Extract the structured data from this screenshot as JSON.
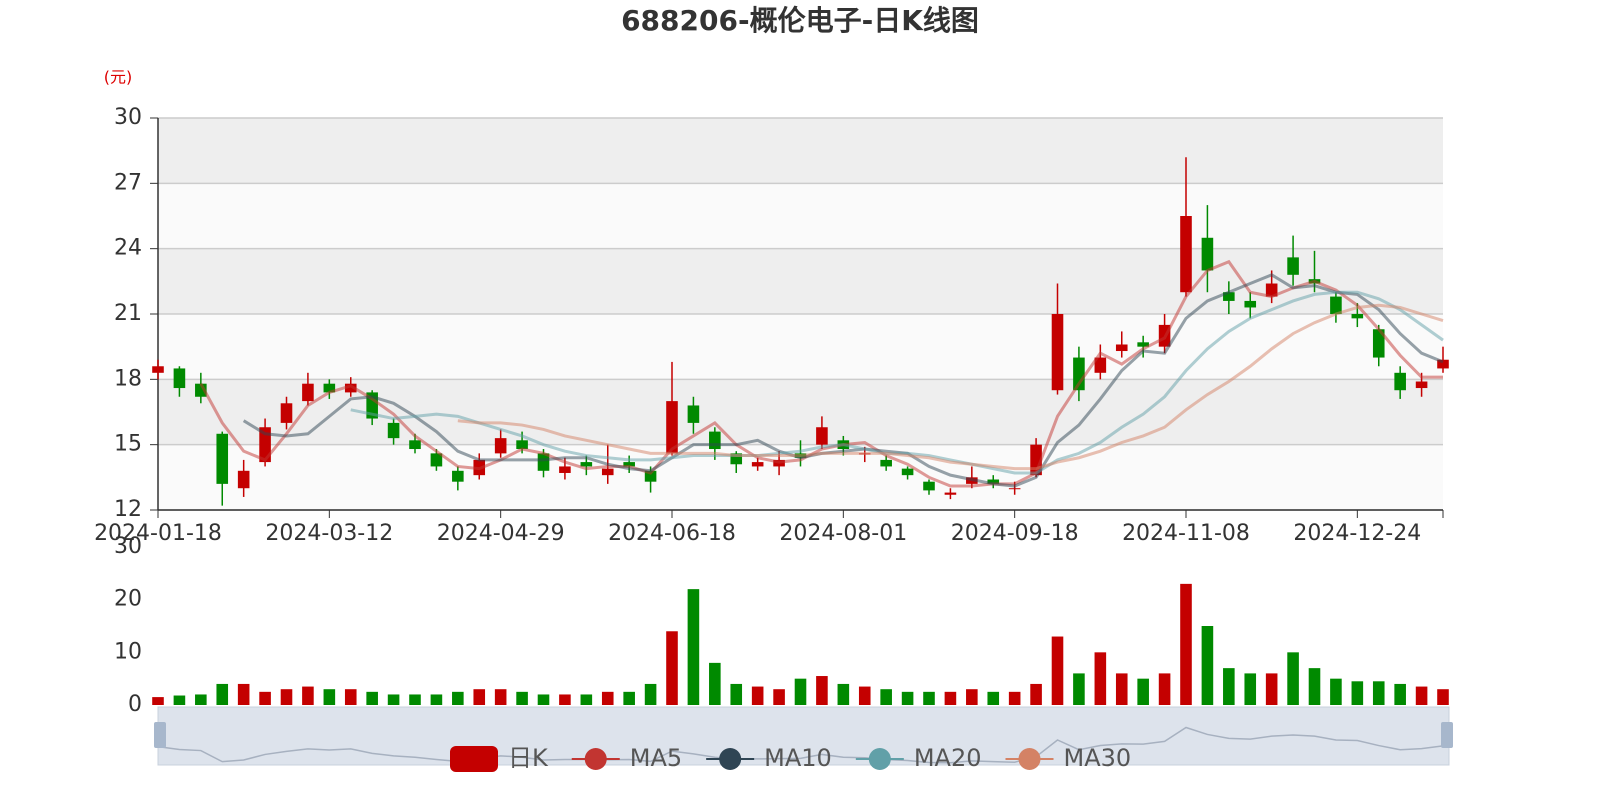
{
  "chart_data": {
    "type": "candlestick",
    "title": "688206-概伦电子-日K线图",
    "y_unit": "(元)",
    "categories": [
      "2024-01-18",
      null,
      null,
      null,
      null,
      null,
      null,
      null,
      "2024-03-12",
      null,
      null,
      null,
      null,
      null,
      null,
      null,
      "2024-04-29",
      null,
      null,
      null,
      null,
      null,
      null,
      null,
      "2024-06-18",
      null,
      null,
      null,
      null,
      null,
      null,
      null,
      "2024-08-01",
      null,
      null,
      null,
      null,
      null,
      null,
      null,
      "2024-09-18",
      null,
      null,
      null,
      null,
      null,
      null,
      null,
      "2024-11-08",
      null,
      null,
      null,
      null,
      null,
      null,
      null,
      "2024-12-24",
      null,
      null,
      null,
      null
    ],
    "ylim": [
      12,
      30
    ],
    "yticks": [
      12,
      15,
      18,
      21,
      24,
      27,
      30
    ],
    "grid": true,
    "legend": "bottom",
    "candles": {
      "name": "日K",
      "up_color": "#c40000",
      "down_color": "#008a00",
      "open": [
        18.3,
        18.5,
        17.8,
        15.5,
        13.0,
        14.2,
        16.0,
        17.0,
        17.8,
        17.4,
        17.4,
        16.0,
        15.2,
        14.6,
        13.8,
        13.6,
        14.6,
        15.2,
        14.6,
        13.7,
        14.2,
        13.6,
        14.2,
        13.8,
        14.6,
        16.8,
        15.6,
        14.6,
        14.0,
        14.0,
        14.6,
        15.0,
        15.2,
        14.6,
        14.3,
        13.9,
        13.3,
        12.7,
        13.2,
        13.4,
        13.0,
        13.6,
        17.5,
        19.0,
        18.3,
        19.3,
        19.7,
        19.5,
        22.0,
        24.5,
        22.0,
        21.6,
        21.8,
        23.6,
        22.6,
        21.8,
        21.0,
        20.3,
        18.3,
        17.6,
        18.5
      ],
      "close": [
        18.6,
        17.6,
        17.2,
        13.2,
        13.8,
        15.8,
        16.9,
        17.8,
        17.4,
        17.8,
        16.2,
        15.3,
        14.8,
        14.0,
        13.3,
        14.3,
        15.3,
        14.8,
        13.8,
        14.0,
        14.0,
        13.9,
        14.0,
        13.3,
        17.0,
        16.0,
        14.8,
        14.1,
        14.2,
        14.3,
        14.4,
        15.8,
        14.8,
        14.6,
        14.0,
        13.6,
        12.9,
        12.8,
        13.5,
        13.2,
        13.0,
        15.0,
        21.0,
        17.5,
        19.0,
        19.6,
        19.5,
        20.5,
        25.5,
        23.0,
        21.6,
        21.3,
        22.4,
        22.8,
        22.4,
        21.0,
        20.8,
        19.0,
        17.5,
        17.9,
        18.9
      ],
      "low": [
        18.0,
        17.2,
        16.9,
        12.2,
        12.6,
        14.0,
        15.7,
        16.8,
        17.1,
        17.2,
        15.9,
        15.0,
        14.6,
        13.8,
        12.9,
        13.4,
        14.4,
        14.6,
        13.5,
        13.4,
        13.6,
        13.2,
        13.7,
        12.8,
        14.5,
        15.5,
        14.3,
        13.7,
        13.8,
        13.6,
        14.0,
        14.8,
        14.5,
        14.2,
        13.8,
        13.4,
        12.7,
        12.5,
        13.0,
        13.0,
        12.7,
        13.5,
        17.3,
        17.0,
        18.0,
        19.0,
        19.0,
        19.2,
        21.8,
        22.0,
        21.0,
        20.8,
        21.5,
        22.3,
        22.0,
        20.6,
        20.4,
        18.6,
        17.1,
        17.2,
        18.3
      ],
      "high": [
        18.9,
        18.6,
        18.3,
        15.6,
        14.3,
        16.2,
        17.2,
        18.3,
        18.0,
        18.1,
        17.5,
        16.2,
        15.5,
        14.8,
        14.0,
        14.6,
        15.7,
        15.6,
        14.8,
        14.4,
        14.5,
        15.0,
        14.5,
        14.0,
        18.8,
        17.2,
        15.8,
        14.7,
        14.4,
        14.7,
        15.2,
        16.3,
        15.4,
        14.9,
        14.5,
        14.0,
        13.4,
        13.0,
        14.0,
        13.6,
        13.3,
        15.3,
        22.4,
        19.5,
        19.6,
        20.2,
        20.0,
        21.0,
        28.2,
        26.0,
        22.5,
        22.0,
        23.0,
        24.6,
        23.9,
        22.0,
        21.5,
        20.5,
        18.6,
        18.3,
        19.5
      ]
    },
    "series": [
      {
        "name": "MA5",
        "color": "#c23531",
        "values": [
          null,
          null,
          17.8,
          16.0,
          14.7,
          14.3,
          15.5,
          16.8,
          17.4,
          17.7,
          17.1,
          16.4,
          15.4,
          14.7,
          14.0,
          13.9,
          14.3,
          14.8,
          14.6,
          14.2,
          13.9,
          14.0,
          14.0,
          13.7,
          14.8,
          15.4,
          16.0,
          15.0,
          14.4,
          14.2,
          14.3,
          14.8,
          15.0,
          15.1,
          14.5,
          14.1,
          13.5,
          13.1,
          13.1,
          13.2,
          13.2,
          13.7,
          16.3,
          17.8,
          19.2,
          18.7,
          19.4,
          19.9,
          21.8,
          23.0,
          23.4,
          22.0,
          21.8,
          22.2,
          22.5,
          22.1,
          21.4,
          20.3,
          19.1,
          18.1,
          18.1
        ]
      },
      {
        "name": "MA10",
        "color": "#2f4554",
        "values": [
          null,
          null,
          null,
          null,
          16.1,
          15.5,
          15.4,
          15.5,
          16.3,
          17.1,
          17.2,
          16.9,
          16.3,
          15.6,
          14.7,
          14.3,
          14.3,
          14.3,
          14.3,
          14.4,
          14.4,
          14.1,
          13.9,
          13.8,
          14.4,
          15.0,
          15.0,
          15.0,
          15.2,
          14.7,
          14.4,
          14.6,
          14.7,
          14.8,
          14.7,
          14.6,
          14.0,
          13.6,
          13.4,
          13.2,
          13.1,
          13.5,
          15.1,
          15.9,
          17.1,
          18.4,
          19.3,
          19.2,
          20.8,
          21.6,
          22.0,
          22.4,
          22.8,
          22.2,
          22.3,
          22.0,
          21.9,
          21.2,
          20.1,
          19.2,
          18.8
        ]
      },
      {
        "name": "MA20",
        "color": "#61a0a8",
        "values": [
          null,
          null,
          null,
          null,
          null,
          null,
          null,
          null,
          null,
          16.6,
          16.4,
          16.2,
          16.3,
          16.4,
          16.3,
          16.0,
          15.7,
          15.4,
          15.0,
          14.7,
          14.5,
          14.4,
          14.3,
          14.3,
          14.4,
          14.5,
          14.5,
          14.5,
          14.5,
          14.6,
          14.7,
          14.9,
          15.0,
          14.8,
          14.6,
          14.6,
          14.5,
          14.3,
          14.1,
          13.9,
          13.7,
          13.7,
          14.3,
          14.6,
          15.1,
          15.8,
          16.4,
          17.2,
          18.4,
          19.4,
          20.2,
          20.8,
          21.2,
          21.6,
          21.9,
          22.0,
          22.0,
          21.7,
          21.2,
          20.5,
          19.8
        ]
      },
      {
        "name": "MA30",
        "color": "#d48265",
        "values": [
          null,
          null,
          null,
          null,
          null,
          null,
          null,
          null,
          null,
          null,
          null,
          null,
          null,
          null,
          16.1,
          16.0,
          16.0,
          15.9,
          15.7,
          15.4,
          15.2,
          15.0,
          14.8,
          14.6,
          14.6,
          14.6,
          14.6,
          14.5,
          14.5,
          14.5,
          14.5,
          14.6,
          14.6,
          14.6,
          14.6,
          14.5,
          14.4,
          14.2,
          14.1,
          14.0,
          13.9,
          13.9,
          14.2,
          14.4,
          14.7,
          15.1,
          15.4,
          15.8,
          16.6,
          17.3,
          17.9,
          18.6,
          19.4,
          20.1,
          20.6,
          21.0,
          21.3,
          21.4,
          21.3,
          21.0,
          20.7
        ]
      }
    ],
    "volume": {
      "values": [
        1.5,
        1.8,
        2,
        4,
        4,
        2.5,
        3,
        3.5,
        3,
        3,
        2.5,
        2,
        2,
        2,
        2.5,
        3,
        3,
        2.5,
        2,
        2,
        2,
        2.5,
        2.5,
        4,
        14,
        22,
        8,
        4,
        3.5,
        3,
        5,
        5.5,
        4,
        3.5,
        3,
        2.5,
        2.5,
        2.5,
        3,
        2.5,
        2.5,
        4,
        13,
        6,
        10,
        6,
        5,
        6,
        23,
        15,
        7,
        6,
        6,
        10,
        7,
        5,
        4.5,
        4.5,
        4,
        3.5,
        3
      ],
      "ylim": [
        0,
        30
      ],
      "yticks": [
        0,
        10,
        20,
        30
      ]
    }
  }
}
